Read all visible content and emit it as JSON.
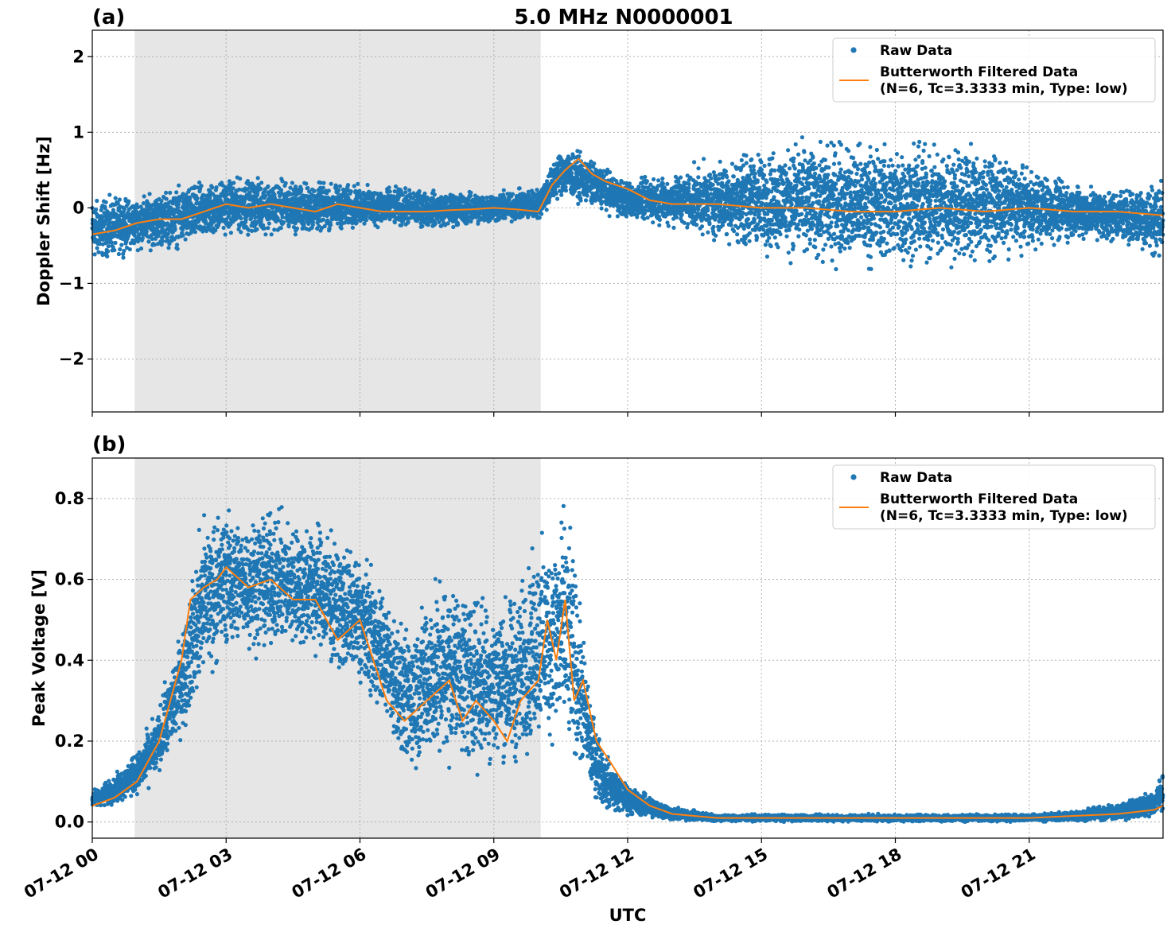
{
  "figure": {
    "suptitle": "5.0 MHz N0000001",
    "xlabel": "UTC",
    "x_tick_labels": [
      "07-12 00",
      "07-12 03",
      "07-12 06",
      "07-12 09",
      "07-12 12",
      "07-12 15",
      "07-12 18",
      "07-12 21"
    ]
  },
  "colors": {
    "raw": "#1f77b4",
    "filtered": "#ff7f0e",
    "shade": "#e6e6e6",
    "grid": "#b0b0b0"
  },
  "legend": {
    "raw": "Raw Data",
    "filtered_line1": "Butterworth Filtered Data",
    "filtered_line2": "(N=6, Tc=3.3333 min, Type: low)"
  },
  "chart_data": [
    {
      "type": "scatter",
      "panel": "(a)",
      "title": "5.0 MHz N0000001",
      "xlabel": "UTC",
      "ylabel": "Doppler Shift [Hz]",
      "x_unit": "hours since 07-12 00 UTC",
      "xlim": [
        0,
        24
      ],
      "ylim": [
        -2.7,
        2.35
      ],
      "y_ticks": [
        -2,
        -1,
        0,
        1,
        2
      ],
      "y_tick_labels": [
        "−2",
        "−1",
        "0",
        "1",
        "2"
      ],
      "shaded_interval": [
        0.95,
        10.05
      ],
      "grid": true,
      "legend_position": "top-right",
      "series": [
        {
          "name": "Raw Data",
          "style": "points",
          "x": [
            0,
            1,
            2,
            3,
            4,
            5,
            6,
            7,
            8,
            9,
            10,
            10.5,
            11,
            12,
            13,
            14,
            15,
            16,
            17,
            18,
            19,
            20,
            21,
            22,
            23,
            24
          ],
          "low": [
            -0.8,
            -0.6,
            -0.6,
            -0.4,
            -0.4,
            -0.4,
            -0.3,
            -0.3,
            -0.3,
            -0.25,
            -0.2,
            0.1,
            0.0,
            -0.2,
            -0.3,
            -0.5,
            -0.7,
            -0.8,
            -0.9,
            -0.9,
            -0.9,
            -0.8,
            -0.6,
            -0.5,
            -0.5,
            -0.8
          ],
          "high": [
            0.2,
            0.2,
            0.35,
            0.45,
            0.45,
            0.4,
            0.35,
            0.3,
            0.25,
            0.25,
            0.3,
            0.85,
            0.75,
            0.4,
            0.5,
            0.7,
            0.9,
            1.0,
            1.0,
            1.0,
            1.0,
            0.9,
            0.6,
            0.4,
            0.3,
            0.5
          ]
        },
        {
          "name": "Butterworth Filtered Data\n(N=6, Tc=3.3333 min, Type: low)",
          "style": "line",
          "x": [
            0,
            0.5,
            1,
            1.5,
            2,
            2.5,
            3,
            3.5,
            4,
            4.5,
            5,
            5.5,
            6,
            6.5,
            7,
            7.5,
            8,
            8.5,
            9,
            9.5,
            10,
            10.3,
            10.6,
            10.9,
            11.2,
            11.5,
            12,
            12.5,
            13,
            14,
            15,
            16,
            17,
            18,
            19,
            20,
            21,
            22,
            23,
            24
          ],
          "y": [
            -0.35,
            -0.3,
            -0.2,
            -0.15,
            -0.15,
            -0.05,
            0.05,
            0.0,
            0.05,
            0.0,
            -0.05,
            0.05,
            0.0,
            -0.05,
            -0.05,
            -0.05,
            -0.03,
            -0.02,
            0.0,
            -0.02,
            -0.05,
            0.3,
            0.5,
            0.65,
            0.45,
            0.35,
            0.25,
            0.1,
            0.05,
            0.05,
            0.0,
            0.0,
            -0.05,
            -0.05,
            0.0,
            -0.05,
            0.0,
            -0.05,
            -0.05,
            -0.1
          ]
        }
      ]
    },
    {
      "type": "scatter",
      "panel": "(b)",
      "xlabel": "UTC",
      "ylabel": "Peak Voltage [V]",
      "x_unit": "hours since 07-12 00 UTC",
      "xlim": [
        0,
        24
      ],
      "ylim": [
        -0.04,
        0.9
      ],
      "y_ticks": [
        0.0,
        0.2,
        0.4,
        0.6,
        0.8
      ],
      "y_tick_labels": [
        "0.0",
        "0.2",
        "0.4",
        "0.6",
        "0.8"
      ],
      "shaded_interval": [
        0.95,
        10.05
      ],
      "grid": true,
      "legend_position": "top-right",
      "series": [
        {
          "name": "Raw Data",
          "style": "points",
          "x": [
            0,
            0.5,
            1,
            1.5,
            2,
            2.5,
            3,
            3.5,
            4,
            4.5,
            5,
            5.5,
            6,
            6.5,
            7,
            7.5,
            8,
            8.5,
            9,
            9.5,
            10,
            10.3,
            10.6,
            10.9,
            11.2,
            11.5,
            12,
            13,
            14,
            15,
            16,
            17,
            18,
            19,
            20,
            21,
            22,
            23,
            23.8,
            24
          ],
          "low": [
            0.03,
            0.04,
            0.06,
            0.1,
            0.2,
            0.3,
            0.4,
            0.4,
            0.4,
            0.4,
            0.38,
            0.35,
            0.3,
            0.25,
            0.1,
            0.1,
            0.12,
            0.1,
            0.1,
            0.1,
            0.15,
            0.15,
            0.12,
            0.1,
            0.05,
            0.02,
            0.01,
            0.0,
            0.0,
            0.0,
            0.0,
            0.0,
            0.0,
            0.0,
            0.0,
            0.0,
            0.0,
            0.0,
            0.01,
            0.01
          ],
          "high": [
            0.08,
            0.12,
            0.18,
            0.3,
            0.5,
            0.8,
            0.8,
            0.78,
            0.8,
            0.77,
            0.78,
            0.72,
            0.7,
            0.6,
            0.5,
            0.6,
            0.65,
            0.6,
            0.6,
            0.6,
            0.75,
            0.75,
            0.85,
            0.6,
            0.3,
            0.18,
            0.1,
            0.04,
            0.02,
            0.02,
            0.02,
            0.02,
            0.02,
            0.02,
            0.02,
            0.02,
            0.03,
            0.05,
            0.08,
            0.15
          ]
        },
        {
          "name": "Butterworth Filtered Data\n(N=6, Tc=3.3333 min, Type: low)",
          "style": "line",
          "x": [
            0,
            0.5,
            1,
            1.5,
            2,
            2.2,
            2.5,
            2.8,
            3,
            3.5,
            4,
            4.5,
            5,
            5.5,
            6,
            6.3,
            6.6,
            7,
            7.5,
            8,
            8.3,
            8.6,
            9,
            9.3,
            9.6,
            10,
            10.2,
            10.4,
            10.6,
            10.8,
            11,
            11.3,
            11.6,
            12,
            12.5,
            13,
            14,
            15,
            16,
            17,
            18,
            19,
            20,
            21,
            22,
            23,
            23.8,
            24
          ],
          "y": [
            0.04,
            0.06,
            0.1,
            0.2,
            0.4,
            0.55,
            0.58,
            0.6,
            0.63,
            0.58,
            0.6,
            0.55,
            0.55,
            0.45,
            0.5,
            0.4,
            0.3,
            0.25,
            0.3,
            0.35,
            0.25,
            0.3,
            0.25,
            0.2,
            0.3,
            0.35,
            0.5,
            0.4,
            0.55,
            0.3,
            0.35,
            0.2,
            0.15,
            0.08,
            0.04,
            0.02,
            0.01,
            0.01,
            0.01,
            0.01,
            0.01,
            0.01,
            0.01,
            0.01,
            0.015,
            0.02,
            0.03,
            0.04
          ]
        }
      ]
    }
  ]
}
